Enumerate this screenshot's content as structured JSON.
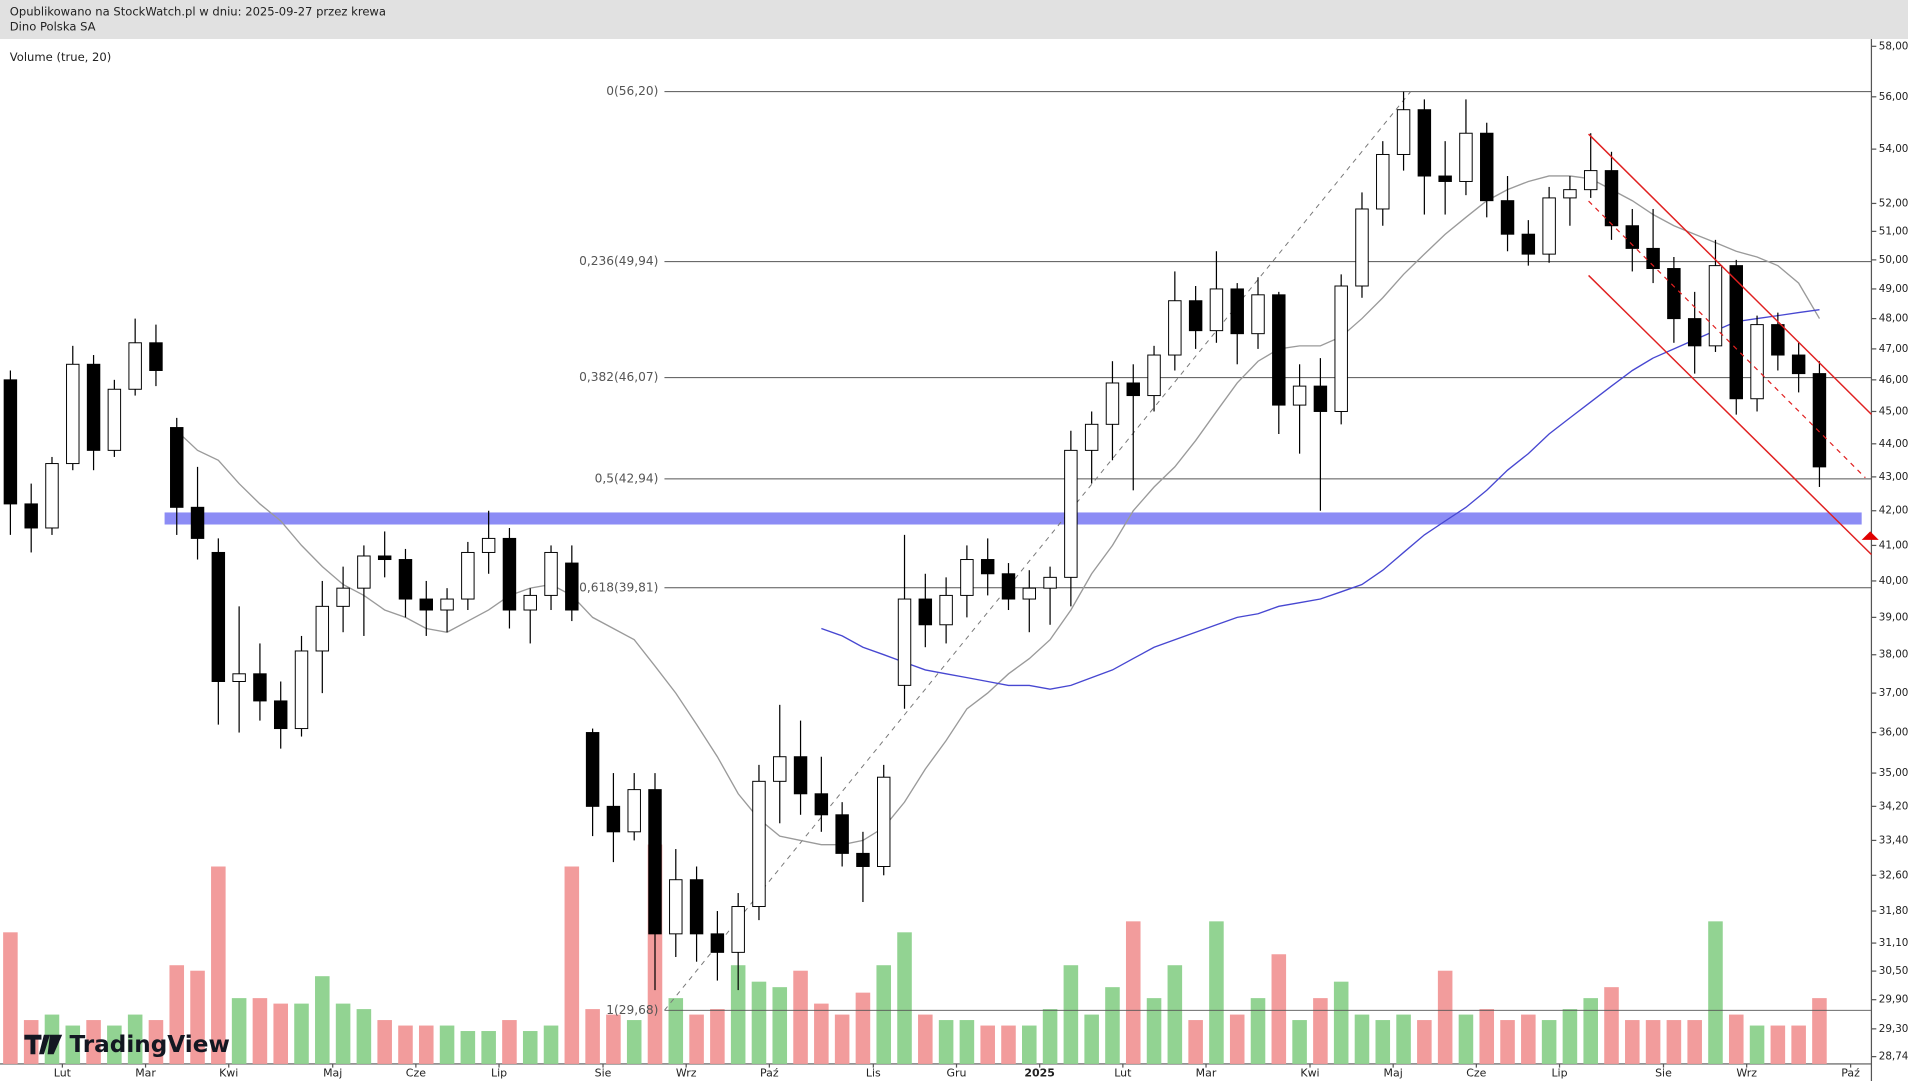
{
  "chart_data": {
    "type": "candlestick",
    "subtitle": "Opublikowano na StockWatch.pl w dniu: 2025-09-27 przez krewa",
    "title": "Dino Polska SA",
    "annotation": "Volume (true, 20)",
    "watermark": "TradingView",
    "log": true,
    "grid": false,
    "candle_up_color": "#ffffff",
    "candle_down_color": "#000000",
    "volume_up_color": "#92d392",
    "volume_down_color": "#f29c9c",
    "categories": [
      null,
      null,
      null,
      "Lut",
      null,
      null,
      null,
      "Mar",
      null,
      null,
      null,
      "Kwi",
      null,
      null,
      null,
      null,
      "Maj",
      null,
      null,
      null,
      "Cze",
      null,
      null,
      null,
      "Lip",
      null,
      null,
      null,
      null,
      "Sie",
      null,
      null,
      null,
      "Wrz",
      null,
      null,
      null,
      "Paź",
      null,
      null,
      null,
      null,
      "Lis",
      null,
      null,
      null,
      "Gru",
      null,
      null,
      null,
      "2025",
      null,
      null,
      null,
      "Lut",
      null,
      null,
      null,
      "Mar",
      null,
      null,
      null,
      null,
      "Kwi",
      null,
      null,
      null,
      "Maj",
      null,
      null,
      null,
      "Cze",
      null,
      null,
      null,
      "Lip",
      null,
      null,
      null,
      null,
      "Sie",
      null,
      null,
      null,
      "Wrz",
      null,
      null,
      null,
      null,
      "Paź"
    ],
    "open": [
      46,
      42.2,
      41.5,
      43.4,
      46.5,
      43.8,
      45.7,
      47.2,
      44.5,
      42.1,
      40.8,
      37.3,
      37.5,
      36.8,
      36.1,
      38.1,
      39.3,
      39.8,
      40.7,
      40.6,
      39.5,
      39.2,
      39.5,
      40.8,
      41.2,
      39.2,
      39.6,
      40.5,
      36,
      34.2,
      33.6,
      34.6,
      31.3,
      32.5,
      31.3,
      30.9,
      31.9,
      34.8,
      35.4,
      34.5,
      34,
      33.1,
      32.8,
      37.2,
      39.5,
      38.8,
      39.6,
      40.6,
      40.2,
      39.5,
      39.8,
      40.1,
      43.8,
      44.6,
      45.9,
      45.5,
      46.8,
      48.6,
      47.6,
      49,
      47.5,
      48.8,
      45.2,
      45.8,
      45,
      49.1,
      51.8,
      53.8,
      55.5,
      53,
      52.8,
      54.6,
      52.1,
      50.9,
      50.2,
      52.2,
      52.5,
      53.2,
      51.2,
      50.4,
      49.7,
      48,
      47.1,
      49.8,
      45.4,
      47.8,
      46.8,
      46.2,
      null,
      null
    ],
    "high": [
      46.3,
      42.8,
      43.6,
      47.1,
      46.8,
      46,
      48,
      47.8,
      44.8,
      43.3,
      41.2,
      39.3,
      38.3,
      37.3,
      38.5,
      40,
      40.4,
      41,
      41.4,
      40.9,
      40,
      39.8,
      41.1,
      42,
      41.5,
      39.8,
      41,
      41,
      36.1,
      35,
      35,
      35,
      33.2,
      32.8,
      31.8,
      32.2,
      35.2,
      36.7,
      36.3,
      35.4,
      34.3,
      33.6,
      35.2,
      41.3,
      40.2,
      40.1,
      41,
      41.2,
      40.5,
      40.3,
      40.4,
      44.4,
      45,
      46.6,
      46.5,
      47.1,
      49.6,
      49.1,
      50.3,
      49.2,
      49.4,
      48.9,
      46.5,
      46.7,
      49.5,
      52.4,
      54.3,
      56.2,
      55.9,
      54.3,
      55.9,
      55,
      53,
      51.4,
      52.6,
      53,
      54.6,
      53.9,
      51.8,
      51.8,
      50.1,
      48.9,
      50.7,
      50,
      48.1,
      48.2,
      47.2,
      46.6,
      null,
      null
    ],
    "low": [
      41.3,
      40.8,
      41.3,
      43.2,
      43.2,
      43.6,
      45.5,
      45.8,
      41.3,
      40.6,
      36.2,
      36,
      36.3,
      35.6,
      35.9,
      37,
      38.6,
      38.5,
      40.1,
      39,
      38.5,
      38.6,
      39.2,
      40.2,
      38.7,
      38.3,
      39.2,
      38.9,
      33.5,
      32.9,
      33.4,
      30.1,
      30.8,
      30.7,
      30.3,
      30.1,
      31.6,
      33.8,
      34,
      33.6,
      32.8,
      32,
      32.6,
      36.6,
      38.2,
      38.3,
      39,
      39.6,
      39.2,
      38.6,
      38.8,
      39.3,
      42.8,
      43.5,
      42.6,
      45,
      46.3,
      47,
      47.2,
      46.5,
      47,
      44.3,
      43.7,
      42,
      44.6,
      48.7,
      51.2,
      53.2,
      51.6,
      51.6,
      52.3,
      51.5,
      50.3,
      49.8,
      49.9,
      51.2,
      52.2,
      50.7,
      49.6,
      49.2,
      47.2,
      46.2,
      46.9,
      44.9,
      45,
      46.3,
      45.6,
      42.7,
      null,
      null
    ],
    "close": [
      42.2,
      41.5,
      43.4,
      46.5,
      43.8,
      45.7,
      47.2,
      46.3,
      42.1,
      41.2,
      37.3,
      37.5,
      36.8,
      36.1,
      38.1,
      39.3,
      39.8,
      40.7,
      40.6,
      39.5,
      39.2,
      39.5,
      40.8,
      41.2,
      39.2,
      39.6,
      40.8,
      39.2,
      34.2,
      33.6,
      34.6,
      31.3,
      32.5,
      31.3,
      30.9,
      31.9,
      34.8,
      35.4,
      34.5,
      34,
      33.1,
      32.8,
      34.9,
      39.5,
      38.8,
      39.6,
      40.6,
      40.2,
      39.5,
      39.8,
      40.1,
      43.8,
      44.6,
      45.9,
      45.5,
      46.8,
      48.6,
      47.6,
      49,
      47.5,
      48.8,
      45.2,
      45.8,
      45,
      49.1,
      51.8,
      53.8,
      55.5,
      53,
      52.8,
      54.6,
      52.1,
      50.9,
      50.2,
      52.2,
      52.5,
      53.2,
      51.2,
      50.4,
      49.7,
      48,
      47.1,
      49.8,
      45.4,
      47.8,
      46.8,
      46.2,
      43.3,
      null,
      null
    ],
    "volume": [
      120,
      40,
      45,
      35,
      40,
      35,
      45,
      40,
      90,
      85,
      180,
      60,
      60,
      55,
      55,
      80,
      55,
      50,
      40,
      35,
      35,
      35,
      30,
      30,
      40,
      30,
      35,
      180,
      50,
      45,
      40,
      200,
      60,
      45,
      50,
      90,
      75,
      70,
      85,
      55,
      45,
      65,
      90,
      120,
      45,
      40,
      40,
      35,
      35,
      35,
      50,
      90,
      45,
      70,
      130,
      60,
      90,
      40,
      130,
      45,
      60,
      100,
      40,
      60,
      75,
      45,
      40,
      45,
      40,
      85,
      45,
      50,
      40,
      45,
      40,
      50,
      60,
      70,
      40,
      40,
      40,
      40,
      130,
      45,
      35,
      35,
      35,
      60,
      null,
      null
    ],
    "moving_averages": [
      {
        "color": "#9a9a9a",
        "values": [
          null,
          null,
          null,
          null,
          null,
          null,
          null,
          null,
          44.4,
          43.8,
          43.5,
          42.8,
          42.2,
          41.7,
          41,
          40.4,
          39.9,
          39.6,
          39.2,
          39,
          38.7,
          38.6,
          38.9,
          39.2,
          39.6,
          39.8,
          39.9,
          39.6,
          39,
          38.7,
          38.4,
          37.7,
          37,
          36.2,
          35.4,
          34.5,
          33.9,
          33.5,
          33.4,
          33.3,
          33.3,
          33.4,
          33.7,
          34.3,
          35.1,
          35.8,
          36.6,
          37,
          37.5,
          37.9,
          38.4,
          39.2,
          40.2,
          41,
          42,
          42.7,
          43.3,
          44.1,
          45,
          45.9,
          46.6,
          47,
          47.1,
          47.1,
          47.4,
          48,
          48.7,
          49.5,
          50.2,
          50.9,
          51.5,
          52.1,
          52.5,
          52.8,
          53,
          53,
          52.9,
          52.5,
          52.1,
          51.6,
          51.2,
          50.9,
          50.6,
          50.3,
          50.1,
          49.8,
          49.2,
          48,
          null,
          null
        ]
      },
      {
        "color": "#4747d1",
        "values": [
          null,
          null,
          null,
          null,
          null,
          null,
          null,
          null,
          null,
          null,
          null,
          null,
          null,
          null,
          null,
          null,
          null,
          null,
          null,
          null,
          null,
          null,
          null,
          null,
          null,
          null,
          null,
          null,
          null,
          null,
          null,
          null,
          null,
          null,
          null,
          null,
          null,
          null,
          null,
          38.7,
          38.5,
          38.2,
          38,
          37.8,
          37.6,
          37.5,
          37.4,
          37.3,
          37.2,
          37.2,
          37.1,
          37.2,
          37.4,
          37.6,
          37.9,
          38.2,
          38.4,
          38.6,
          38.8,
          39,
          39.1,
          39.3,
          39.4,
          39.5,
          39.7,
          39.9,
          40.3,
          40.8,
          41.3,
          41.7,
          42.1,
          42.6,
          43.2,
          43.7,
          44.3,
          44.8,
          45.3,
          45.8,
          46.3,
          46.7,
          47,
          47.3,
          47.6,
          47.9,
          48,
          48.1,
          48.2,
          48.3,
          null,
          null
        ]
      }
    ],
    "fib_levels": [
      {
        "value": 56.2,
        "label": "0(56,20)"
      },
      {
        "value": 49.94,
        "label": "0,236(49,94)"
      },
      {
        "value": 46.07,
        "label": "0,382(46,07)"
      },
      {
        "value": 42.94,
        "label": "0,5(42,94)"
      },
      {
        "value": 39.81,
        "label": "0,618(39,81)"
      },
      {
        "value": 29.68,
        "label": "1(29,68)"
      }
    ],
    "zone": {
      "low": 41.6,
      "high": 41.95,
      "color": "#8c8cf5"
    },
    "ylim": [
      28.74,
      58
    ],
    "yticks": [
      {
        "value": 28.74,
        "label": "28,74"
      },
      {
        "value": 29.3,
        "label": "29,30"
      },
      {
        "value": 29.9,
        "label": "29,90"
      },
      {
        "value": 30.5,
        "label": "30,50"
      },
      {
        "value": 31.1,
        "label": "31,10"
      },
      {
        "value": 31.8,
        "label": "31,80"
      },
      {
        "value": 32.6,
        "label": "32,60"
      },
      {
        "value": 33.4,
        "label": "33,40"
      },
      {
        "value": 34.2,
        "label": "34,20"
      },
      {
        "value": 35,
        "label": "35,00"
      },
      {
        "value": 36,
        "label": "36,00"
      },
      {
        "value": 37,
        "label": "37,00"
      },
      {
        "value": 38,
        "label": "38,00"
      },
      {
        "value": 39,
        "label": "39,00"
      },
      {
        "value": 40,
        "label": "40,00"
      },
      {
        "value": 41,
        "label": "41,00"
      },
      {
        "value": 42,
        "label": "42,00"
      },
      {
        "value": 43,
        "label": "43,00"
      },
      {
        "value": 44,
        "label": "44,00"
      },
      {
        "value": 45,
        "label": "45,00"
      },
      {
        "value": 46,
        "label": "46,00"
      },
      {
        "value": 47,
        "label": "47,00"
      },
      {
        "value": 48,
        "label": "48,00"
      },
      {
        "value": 49,
        "label": "49,00"
      },
      {
        "value": 50,
        "label": "50,00"
      },
      {
        "value": 51,
        "label": "51,00"
      },
      {
        "value": 52,
        "label": "52,00"
      },
      {
        "value": 54,
        "label": "54,00"
      },
      {
        "value": 56,
        "label": "56,00"
      },
      {
        "value": 58,
        "label": "58,00"
      }
    ]
  }
}
